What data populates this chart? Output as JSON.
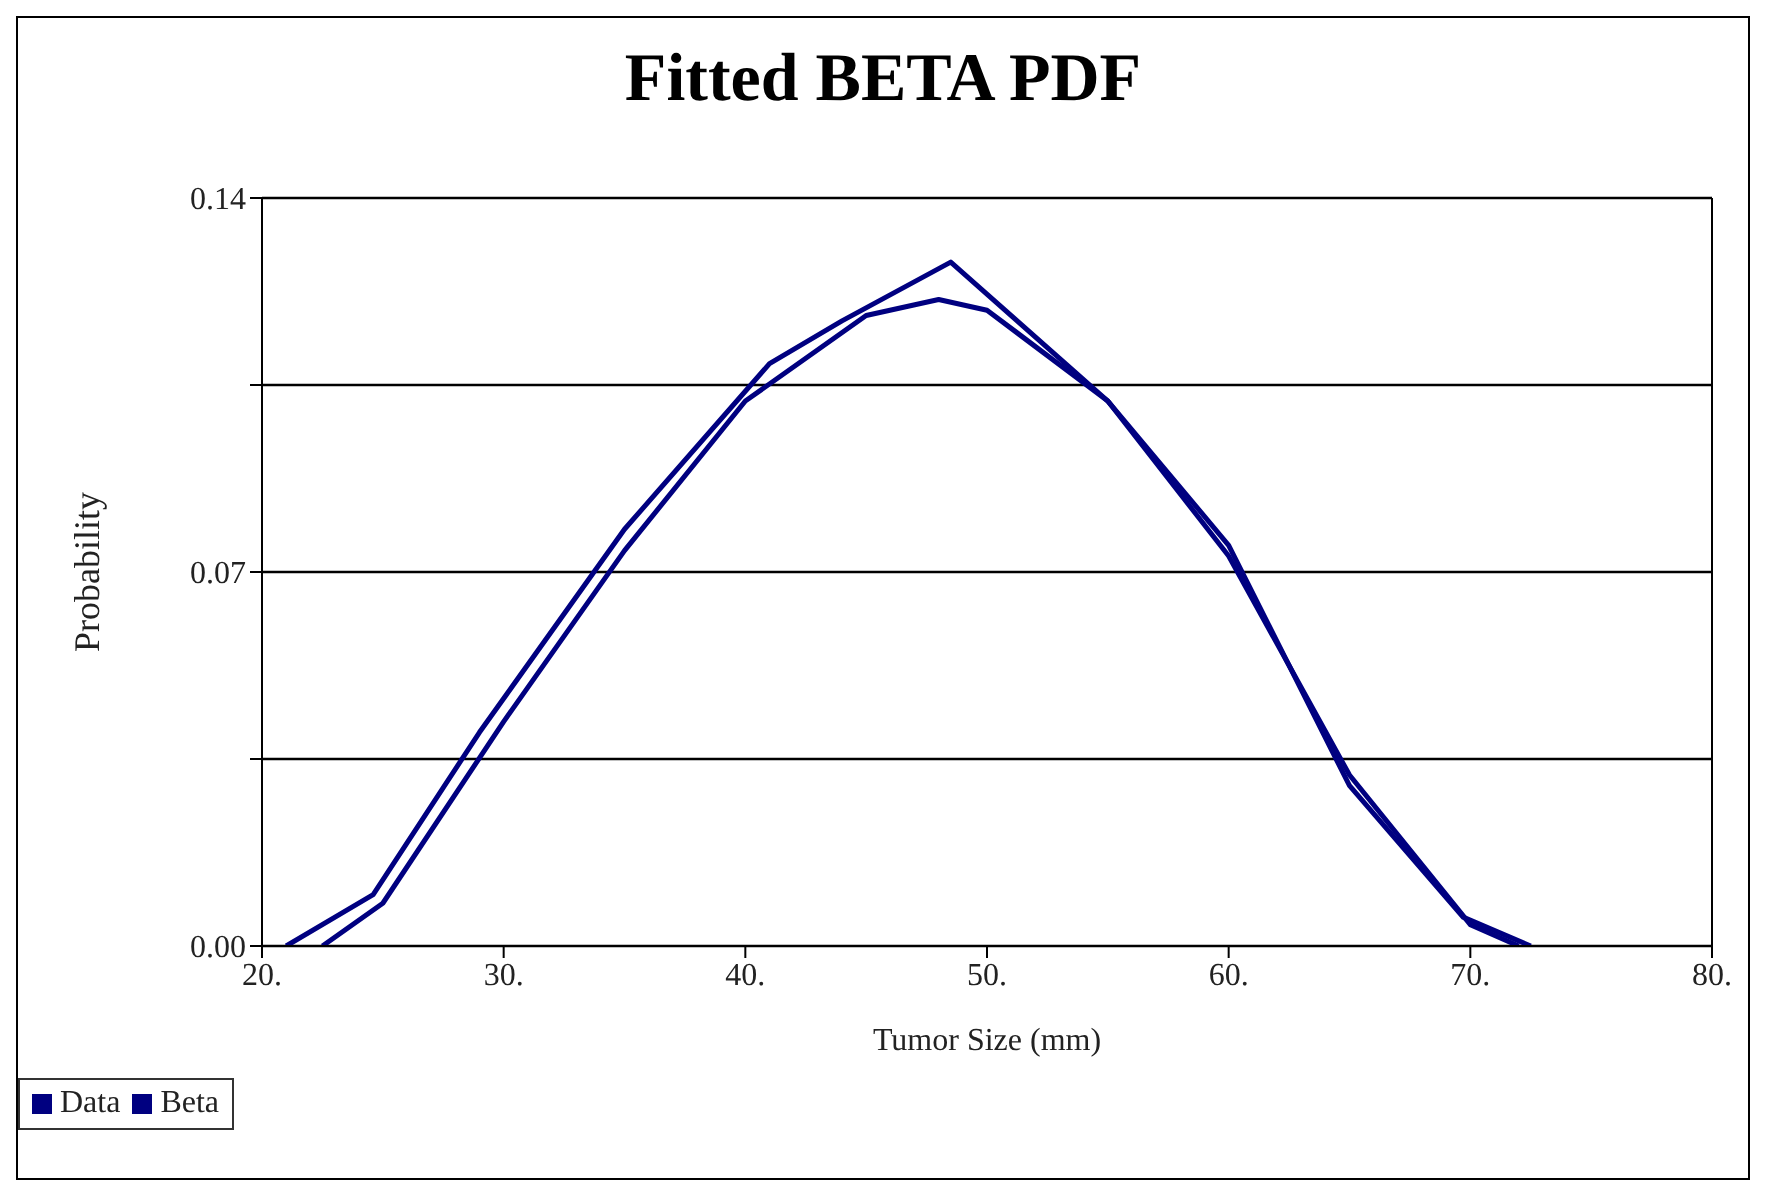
{
  "chart_data": {
    "type": "line",
    "title": "Fitted BETA PDF",
    "xlabel": "Tumor Size (mm)",
    "ylabel": "Probability",
    "xlim": [
      20,
      80
    ],
    "xticks": [
      {
        "value": 20,
        "label": "20."
      },
      {
        "value": 30,
        "label": "30."
      },
      {
        "value": 40,
        "label": "40."
      },
      {
        "value": 50,
        "label": "50."
      },
      {
        "value": 60,
        "label": "60."
      },
      {
        "value": 70,
        "label": "70."
      },
      {
        "value": 80,
        "label": "80."
      }
    ],
    "ylim": [
      0,
      0.14
    ],
    "yticks": [
      {
        "value": 0,
        "label": "0.00"
      },
      {
        "value": 0.035,
        "label": null
      },
      {
        "value": 0.07,
        "label": "0.07"
      },
      {
        "value": 0.105,
        "label": null
      },
      {
        "value": 0.14,
        "label": "0.14"
      }
    ],
    "grid": "y",
    "legend": "bottom left",
    "marker": "none",
    "line_style": "solid",
    "series": [
      {
        "name": "Data",
        "color": "#000080",
        "x": [
          21,
          24.6,
          29,
          35,
          41,
          44,
          48.5,
          55,
          60,
          65,
          69.7,
          72.5
        ],
        "values": [
          0,
          0.0096,
          0.04,
          0.078,
          0.109,
          0.117,
          0.128,
          0.102,
          0.075,
          0.03,
          0.0054,
          0
        ]
      },
      {
        "name": "Beta",
        "color": "#000080",
        "x": [
          22.5,
          25,
          30,
          35,
          40,
          45,
          48,
          50,
          55,
          60,
          65,
          70,
          72
        ],
        "values": [
          0,
          0.008,
          0.042,
          0.074,
          0.102,
          0.118,
          0.121,
          0.119,
          0.102,
          0.073,
          0.032,
          0.004,
          0
        ]
      }
    ]
  }
}
